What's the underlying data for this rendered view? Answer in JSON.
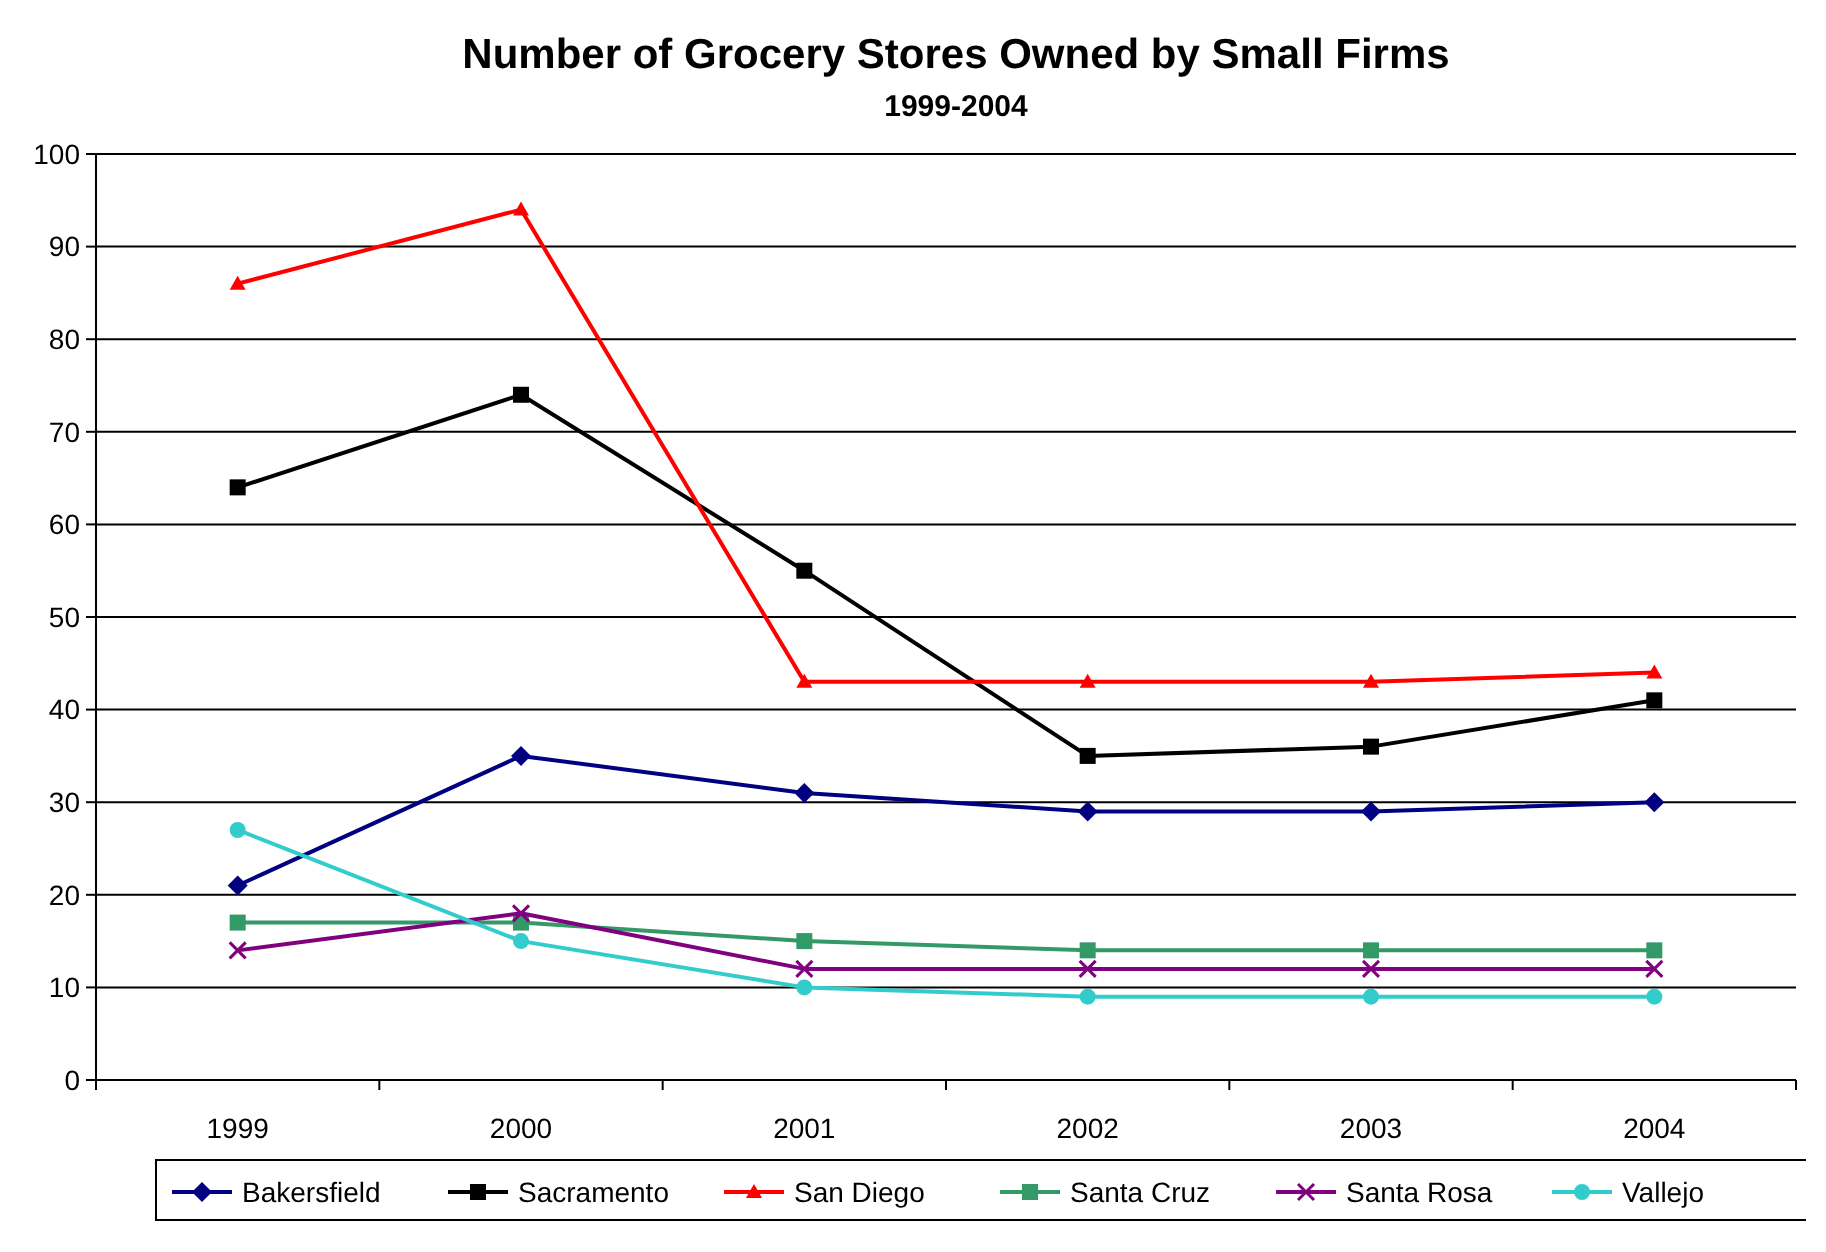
{
  "chart_data": {
    "type": "line",
    "title": "Number of Grocery Stores Owned by Small Firms",
    "subtitle": "1999-2004",
    "categories": [
      "1999",
      "2000",
      "2001",
      "2002",
      "2003",
      "2004"
    ],
    "ylim": [
      0,
      100
    ],
    "yticks": [
      0,
      10,
      20,
      30,
      40,
      50,
      60,
      70,
      80,
      90,
      100
    ],
    "grid": "y",
    "legend": "bottom",
    "series": [
      {
        "name": "Bakersfield",
        "color": "#000080",
        "marker": "diamond",
        "values": [
          21,
          35,
          31,
          29,
          29,
          30
        ]
      },
      {
        "name": "Sacramento",
        "color": "#000000",
        "marker": "square",
        "values": [
          64,
          74,
          55,
          35,
          36,
          41
        ]
      },
      {
        "name": "San Diego",
        "color": "#ff0000",
        "marker": "triangle",
        "values": [
          86,
          94,
          43,
          43,
          43,
          44
        ]
      },
      {
        "name": "Santa Cruz",
        "color": "#339966",
        "marker": "square",
        "values": [
          17,
          17,
          15,
          14,
          14,
          14
        ]
      },
      {
        "name": "Santa Rosa",
        "color": "#800080",
        "marker": "cross",
        "values": [
          14,
          18,
          12,
          12,
          12,
          12
        ]
      },
      {
        "name": "Vallejo",
        "color": "#33cccc",
        "marker": "circle",
        "values": [
          27,
          15,
          10,
          9,
          9,
          9
        ]
      }
    ]
  }
}
